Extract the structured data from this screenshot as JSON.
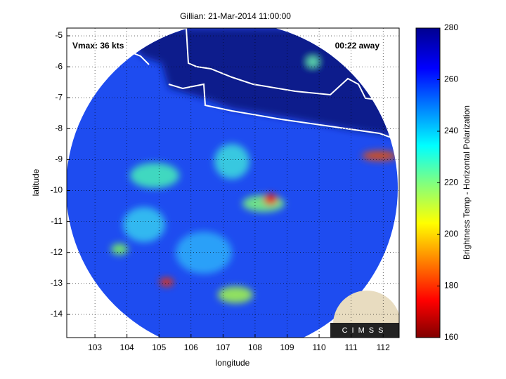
{
  "chart_data": {
    "type": "heatmap",
    "title": "Gillian: 21-Mar-2014 11:00:00",
    "annotations": [
      "Vmax: 36 kts",
      "00:22 away"
    ],
    "x_label": "longitude",
    "y_label": "latitude",
    "xlim": [
      102.12,
      112.5
    ],
    "xticks": [
      103,
      104,
      105,
      106,
      107,
      108,
      109,
      110,
      111,
      112
    ],
    "ylim": [
      -14.75,
      -4.75
    ],
    "yticks": [
      -5,
      -6,
      -7,
      -8,
      -9,
      -10,
      -11,
      -12,
      -13,
      -14
    ],
    "grid": true,
    "colorbar": {
      "label": "Brightness Temp - Horizontal Polarization",
      "lim": [
        160,
        280
      ],
      "ticks": [
        160,
        180,
        200,
        220,
        240,
        260,
        280
      ],
      "colormap": "jet"
    },
    "logo": "CIMSS"
  }
}
